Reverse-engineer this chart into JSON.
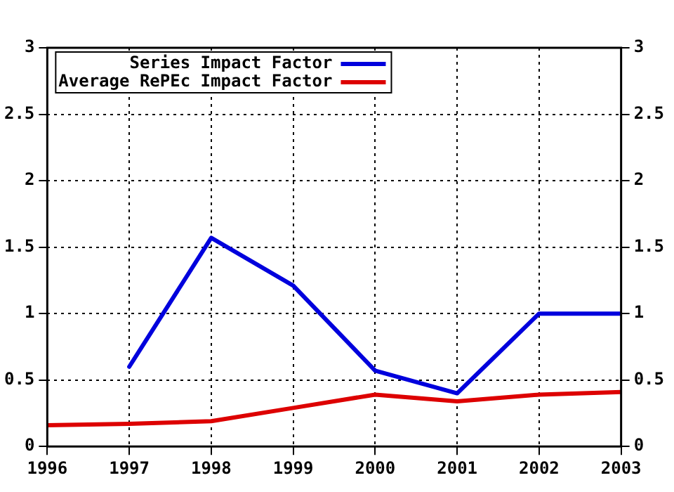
{
  "chart_data": {
    "type": "line",
    "x": [
      1996,
      1997,
      1998,
      1999,
      2000,
      2001,
      2002,
      2003
    ],
    "series": [
      {
        "name": "Series Impact Factor",
        "color": "#0000dd",
        "values": [
          null,
          0.6,
          1.57,
          1.21,
          0.57,
          0.4,
          1.0,
          1.0
        ]
      },
      {
        "name": "Average RePEc Impact Factor",
        "color": "#dd0000",
        "values": [
          0.16,
          0.17,
          0.19,
          0.29,
          0.39,
          0.34,
          0.39,
          0.41
        ]
      }
    ],
    "xlim": [
      1996,
      2003
    ],
    "xticks": [
      1996,
      1997,
      1998,
      1999,
      2000,
      2001,
      2002,
      2003
    ],
    "ylim": [
      0,
      3
    ],
    "yticks": [
      0,
      0.5,
      1,
      1.5,
      2,
      2.5,
      3
    ],
    "y2lim": [
      0,
      3
    ],
    "y2ticks": [
      0,
      0.5,
      1,
      1.5,
      2,
      2.5,
      3
    ],
    "grid": true,
    "legend": "top left",
    "marker": "none",
    "line_style": "solid"
  }
}
